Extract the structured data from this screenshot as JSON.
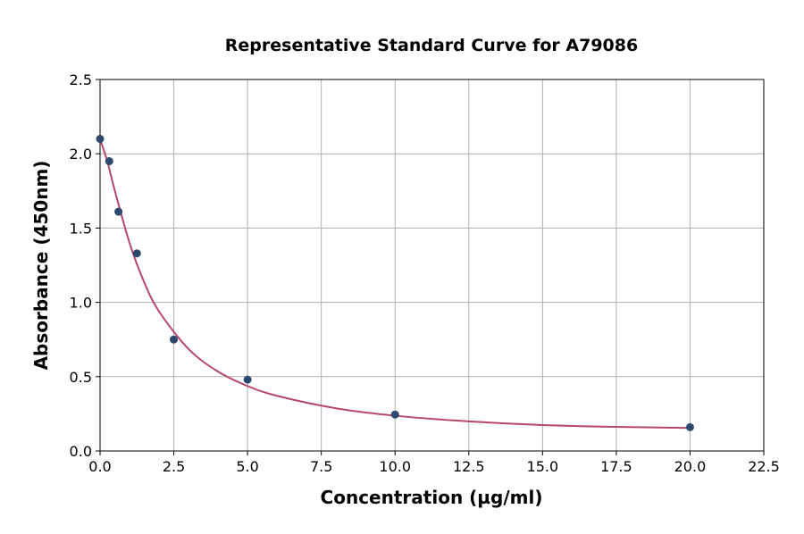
{
  "chart_data": {
    "type": "scatter",
    "title": "Representative Standard Curve for A79086",
    "xlabel": "Concentration (µg/ml)",
    "ylabel": "Absorbance (450nm)",
    "xlim": [
      0,
      22.5
    ],
    "ylim": [
      0,
      2.5
    ],
    "grid": true,
    "xticks": [
      "0.0",
      "2.5",
      "5.0",
      "7.5",
      "10.0",
      "12.5",
      "15.0",
      "17.5",
      "20.0",
      "22.5"
    ],
    "yticks": [
      "0.0",
      "0.5",
      "1.0",
      "1.5",
      "2.0",
      "2.5"
    ],
    "points": {
      "x": [
        0,
        0.3125,
        0.625,
        1.25,
        2.5,
        5,
        10,
        20
      ],
      "y": [
        2.1,
        1.95,
        1.61,
        1.33,
        0.75,
        0.48,
        0.245,
        0.16
      ],
      "color": "#2d4a6e"
    },
    "fit_curve": {
      "x": [
        0,
        0.25,
        0.5,
        1,
        1.5,
        2,
        3,
        4,
        5,
        6,
        8,
        10,
        12.5,
        15,
        17.5,
        20
      ],
      "y": [
        2.1,
        1.947,
        1.752,
        1.4,
        1.134,
        0.939,
        0.686,
        0.534,
        0.437,
        0.371,
        0.287,
        0.237,
        0.199,
        0.174,
        0.162,
        0.155
      ],
      "color": "#b5476b"
    }
  }
}
